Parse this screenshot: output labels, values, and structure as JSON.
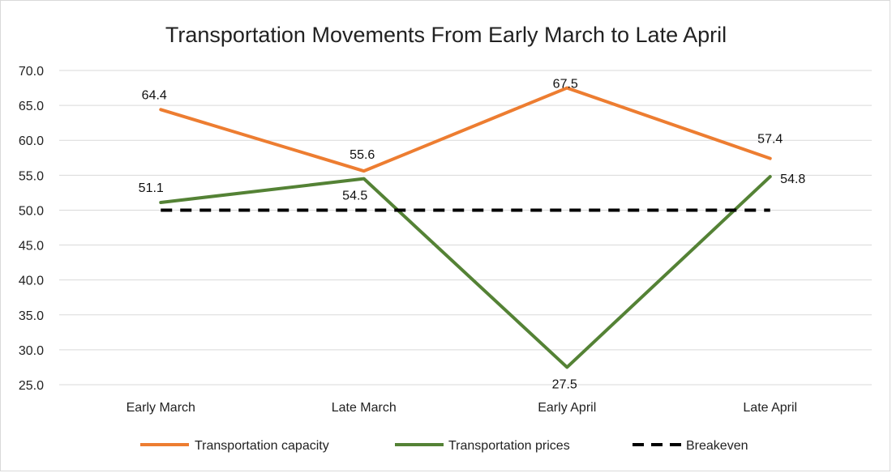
{
  "chart_data": {
    "type": "line",
    "title": "Transportation Movements From Early March to Late April",
    "categories": [
      "Early March",
      "Late March",
      "Early April",
      "Late April"
    ],
    "ylim": [
      25.0,
      70.0
    ],
    "ytick_step": 5,
    "yticks": [
      "25.0",
      "30.0",
      "35.0",
      "40.0",
      "45.0",
      "50.0",
      "55.0",
      "60.0",
      "65.0",
      "70.0"
    ],
    "grid": true,
    "legend_position": "bottom",
    "series": [
      {
        "name": "Transportation capacity",
        "values": [
          64.4,
          55.6,
          67.5,
          57.4
        ],
        "labels": [
          "64.4",
          "55.6",
          "67.5",
          "57.4"
        ],
        "color": "#ed7d31",
        "dashed": false
      },
      {
        "name": "Transportation prices",
        "values": [
          51.1,
          54.5,
          27.5,
          54.8
        ],
        "labels": [
          "51.1",
          "54.5",
          "27.5",
          "54.8"
        ],
        "color": "#548235",
        "dashed": false
      },
      {
        "name": "Breakeven",
        "values": [
          50,
          50,
          50,
          50
        ],
        "labels": [],
        "color": "#000000",
        "dashed": true
      }
    ]
  }
}
